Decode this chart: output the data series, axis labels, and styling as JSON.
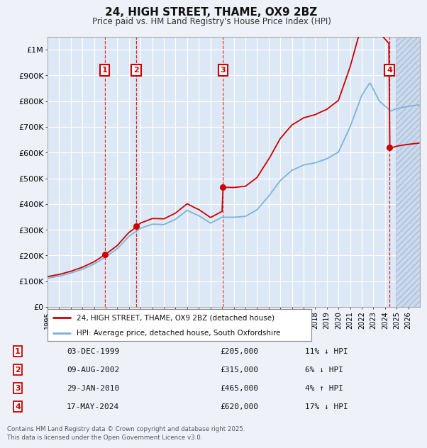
{
  "title": "24, HIGH STREET, THAME, OX9 2BZ",
  "subtitle": "Price paid vs. HM Land Registry's House Price Index (HPI)",
  "background_color": "#eef2f8",
  "plot_bg_color": "#dce8f5",
  "grid_color": "#ffffff",
  "red_line_color": "#cc0000",
  "blue_line_color": "#7ab0d4",
  "ylim": [
    0,
    1050000
  ],
  "yticks": [
    0,
    100000,
    200000,
    300000,
    400000,
    500000,
    600000,
    700000,
    800000,
    900000,
    1000000
  ],
  "ytick_labels": [
    "£0",
    "£100K",
    "£200K",
    "£300K",
    "£400K",
    "£500K",
    "£600K",
    "£700K",
    "£800K",
    "£900K",
    "£1M"
  ],
  "xstart": 1995,
  "xend": 2027,
  "transactions": [
    {
      "num": 1,
      "date": "03-DEC-1999",
      "year": 1999.92,
      "price": 205000,
      "pct": "11%",
      "dir": "↓"
    },
    {
      "num": 2,
      "date": "09-AUG-2002",
      "year": 2002.61,
      "price": 315000,
      "pct": "6%",
      "dir": "↓"
    },
    {
      "num": 3,
      "date": "29-JAN-2010",
      "year": 2010.08,
      "price": 465000,
      "pct": "4%",
      "dir": "↑"
    },
    {
      "num": 4,
      "date": "17-MAY-2024",
      "year": 2024.38,
      "price": 620000,
      "pct": "17%",
      "dir": "↓"
    }
  ],
  "legend_label_red": "24, HIGH STREET, THAME, OX9 2BZ (detached house)",
  "legend_label_blue": "HPI: Average price, detached house, South Oxfordshire",
  "footnote": "Contains HM Land Registry data © Crown copyright and database right 2025.\nThis data is licensed under the Open Government Licence v3.0.",
  "table_rows": [
    [
      "1",
      "03-DEC-1999",
      "£205,000",
      "11% ↓ HPI"
    ],
    [
      "2",
      "09-AUG-2002",
      "£315,000",
      "6% ↓ HPI"
    ],
    [
      "3",
      "29-JAN-2010",
      "£465,000",
      "4% ↑ HPI"
    ],
    [
      "4",
      "17-MAY-2024",
      "£620,000",
      "17% ↓ HPI"
    ]
  ]
}
